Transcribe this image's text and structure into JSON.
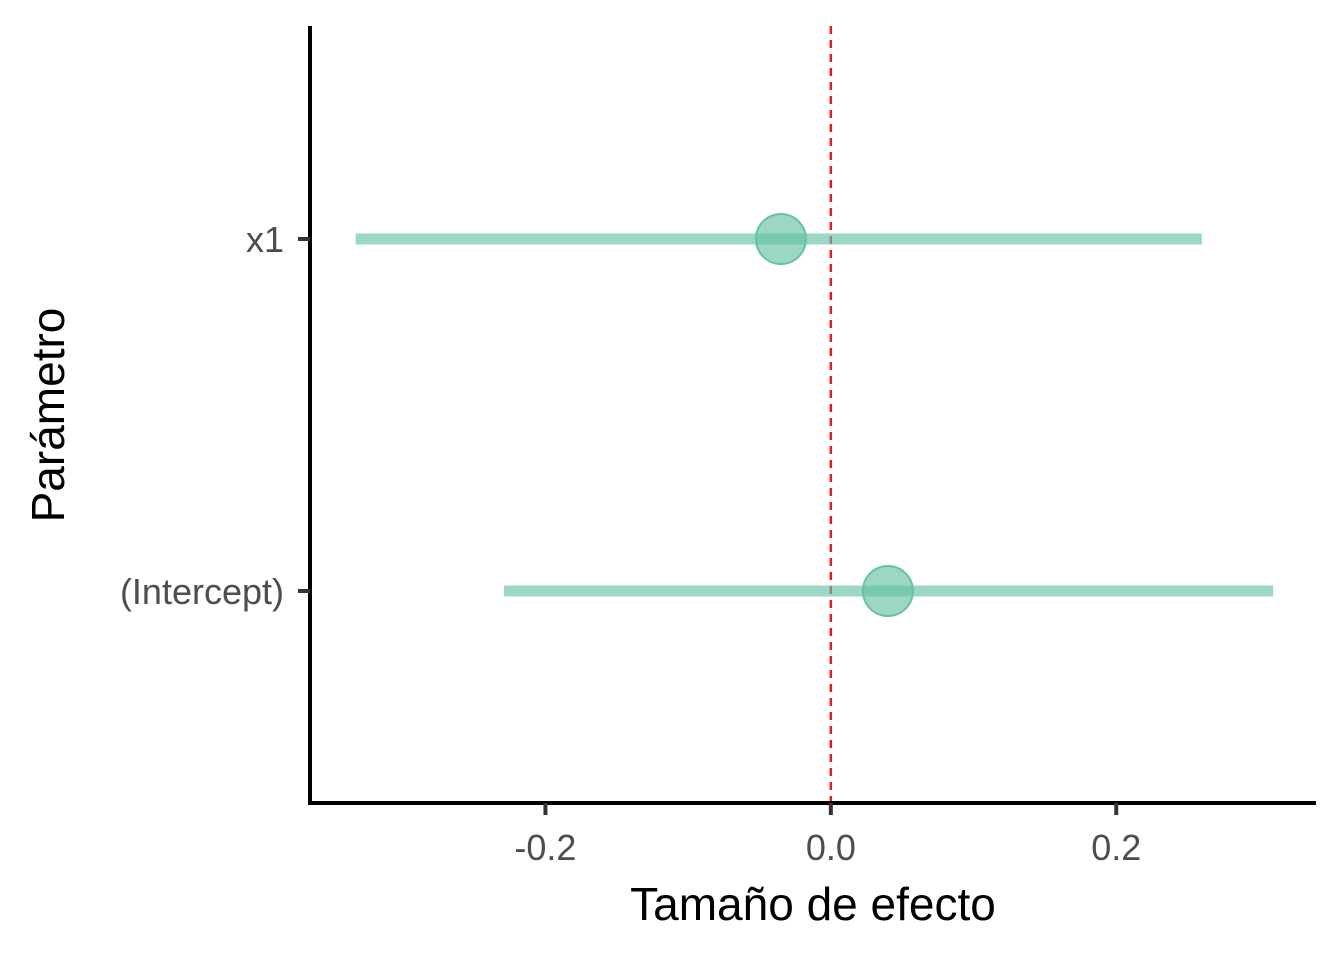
{
  "chart_data": {
    "type": "forest",
    "xlabel": "Tamaño de efecto",
    "ylabel": "Parámetro",
    "xlim": [
      -0.365,
      0.34
    ],
    "x_ticks": [
      -0.2,
      0.0,
      0.2
    ],
    "x_tick_labels": [
      "-0.2",
      "0.0",
      "0.2"
    ],
    "reference_line": {
      "x": 0.0,
      "color": "#e41a1c",
      "style": "dashed"
    },
    "series_color": "#66c2a5",
    "parameters": [
      {
        "label": "x1",
        "estimate": -0.035,
        "low": -0.333,
        "high": 0.26
      },
      {
        "label": "(Intercept)",
        "estimate": 0.04,
        "low": -0.229,
        "high": 0.31
      }
    ],
    "grid": false,
    "legend": "none"
  }
}
